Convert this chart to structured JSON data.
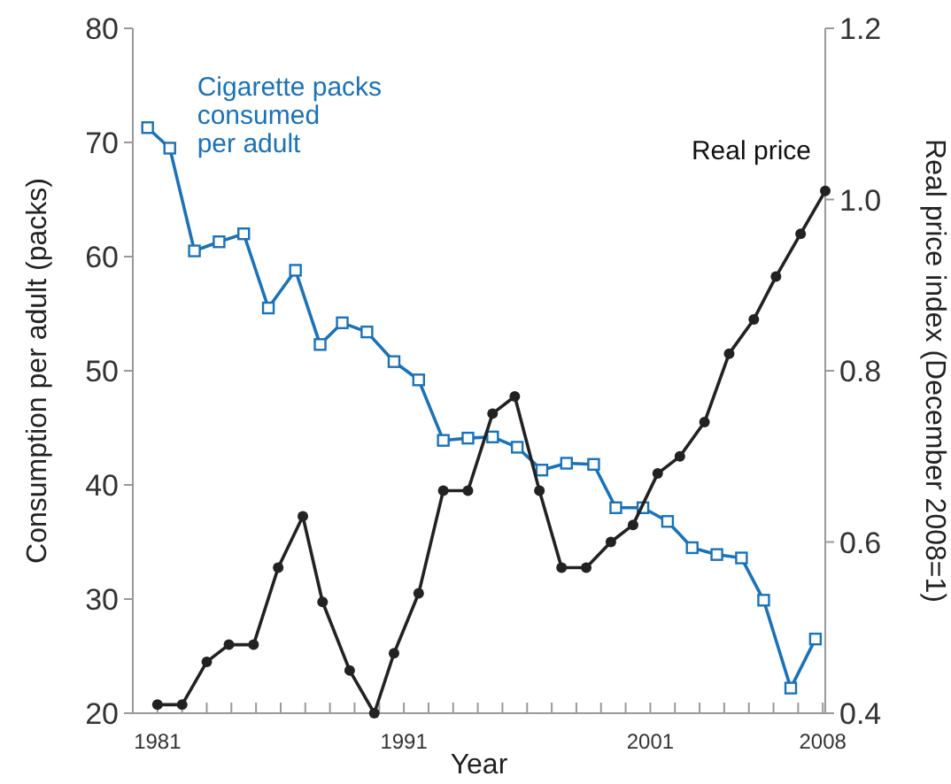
{
  "chart_data": {
    "type": "line",
    "xlabel": "Year",
    "ylabel": "Consumption per adult (packs)",
    "y2label": "Real price index (December 2008=1)",
    "xlim": [
      1980,
      2008.1
    ],
    "xticks": [
      {
        "value": 1981,
        "label": "1981"
      },
      {
        "value": 1982,
        "label": null
      },
      {
        "value": 1983,
        "label": null
      },
      {
        "value": 1984,
        "label": null
      },
      {
        "value": 1985,
        "label": null
      },
      {
        "value": 1986,
        "label": null
      },
      {
        "value": 1987,
        "label": null
      },
      {
        "value": 1988,
        "label": null
      },
      {
        "value": 1989,
        "label": null
      },
      {
        "value": 1990,
        "label": null
      },
      {
        "value": 1991,
        "label": "1991"
      },
      {
        "value": 1992,
        "label": null
      },
      {
        "value": 1993,
        "label": null
      },
      {
        "value": 1994,
        "label": null
      },
      {
        "value": 1995,
        "label": null
      },
      {
        "value": 1996,
        "label": null
      },
      {
        "value": 1997,
        "label": null
      },
      {
        "value": 1998,
        "label": null
      },
      {
        "value": 1999,
        "label": null
      },
      {
        "value": 2000,
        "label": null
      },
      {
        "value": 2001,
        "label": "2001"
      },
      {
        "value": 2002,
        "label": null
      },
      {
        "value": 2003,
        "label": null
      },
      {
        "value": 2004,
        "label": null
      },
      {
        "value": 2005,
        "label": null
      },
      {
        "value": 2006,
        "label": null
      },
      {
        "value": 2007,
        "label": null
      },
      {
        "value": 2008,
        "label": "2008"
      }
    ],
    "ylim": [
      20,
      80
    ],
    "yticks": [
      20,
      30,
      40,
      50,
      60,
      70,
      80
    ],
    "y2lim": [
      0.4,
      1.2
    ],
    "y2ticks": [
      0.4,
      0.6,
      0.8,
      {
        "value": 1.0,
        "label": "1.0"
      },
      1.2
    ],
    "grid": false,
    "series": [
      {
        "name": "Cigarette packs\nconsumed\nper adult",
        "color": "#1a72b8",
        "marker": "square",
        "x": [
          1980.6,
          1981.5,
          1982.5,
          1983.5,
          1984.5,
          1985.5,
          1986.6,
          1987.6,
          1988.5,
          1989.5,
          1990.6,
          1991.6,
          1992.6,
          1993.6,
          1994.6,
          1995.6,
          1996.6,
          1997.6,
          1998.7,
          1999.6,
          2000.7,
          2001.7,
          2002.7,
          2003.7,
          2004.7,
          2005.6,
          2006.7,
          2007.7
        ],
        "values": [
          71.3,
          69.5,
          60.5,
          61.3,
          62,
          55.5,
          58.8,
          52.3,
          54.2,
          53.4,
          50.8,
          49.2,
          43.9,
          44.1,
          44.2,
          43.3,
          41.3,
          41.9,
          41.8,
          38,
          38,
          36.8,
          34.5,
          33.9,
          33.6,
          29.9,
          22.2,
          26.5
        ]
      },
      {
        "name": "Real price",
        "color": "#222222",
        "marker": "circle",
        "axis": "y2",
        "x": [
          1981,
          1982,
          1983,
          1983.9,
          1984.9,
          1985.9,
          1986.9,
          1987.7,
          1988.8,
          1989.8,
          1990.6,
          1991.6,
          1992.6,
          1993.6,
          1994.6,
          1995.5,
          1996.5,
          1997.4,
          1998.4,
          1999.4,
          2000.3,
          2001.3,
          2002.2,
          2003.2,
          2004.2,
          2005.2,
          2006.1,
          2007.1,
          2008.1
        ],
        "values": [
          0.41,
          0.41,
          0.46,
          0.48,
          0.48,
          0.57,
          0.63,
          0.53,
          0.45,
          0.4,
          0.47,
          0.54,
          0.66,
          0.66,
          0.75,
          0.77,
          0.66,
          0.57,
          0.57,
          0.6,
          0.62,
          0.68,
          0.7,
          0.74,
          0.82,
          0.86,
          0.91,
          0.96,
          1.01
        ]
      }
    ]
  }
}
